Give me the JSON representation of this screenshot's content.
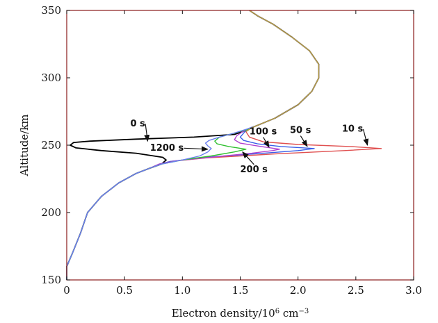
{
  "chart_data": {
    "type": "line",
    "xlabel": "Electron density/10",
    "xlabel_exp": "6",
    "xlabel_unit": " cm",
    "xlabel_unit_exp": "−3",
    "ylabel": "Altitude/km",
    "xlim": [
      0,
      3.0
    ],
    "ylim": [
      150,
      350
    ],
    "xticks": [
      0,
      0.5,
      1.0,
      1.5,
      2.0,
      2.5,
      3.0
    ],
    "xtick_labels": [
      "0",
      "0.5",
      "1.0",
      "1.5",
      "2.0",
      "2.5",
      "3.0"
    ],
    "yticks": [
      150,
      200,
      250,
      300,
      350
    ],
    "ytick_labels": [
      "150",
      "200",
      "250",
      "300",
      "350"
    ],
    "grid": false,
    "series": [
      {
        "label": "0 s",
        "color": "#000000",
        "points": [
          [
            0.0,
            150
          ],
          [
            0.0,
            160
          ],
          [
            0.05,
            170
          ],
          [
            0.12,
            185
          ],
          [
            0.18,
            200
          ],
          [
            0.3,
            212
          ],
          [
            0.45,
            222
          ],
          [
            0.6,
            229
          ],
          [
            0.72,
            233
          ],
          [
            0.82,
            236
          ],
          [
            0.86,
            239
          ],
          [
            0.83,
            241
          ],
          [
            0.6,
            244
          ],
          [
            0.3,
            246
          ],
          [
            0.08,
            248
          ],
          [
            0.03,
            250
          ],
          [
            0.06,
            252
          ],
          [
            0.2,
            253
          ],
          [
            0.6,
            254.5
          ],
          [
            1.1,
            256
          ],
          [
            1.45,
            258
          ],
          [
            1.52,
            260
          ],
          [
            1.6,
            263
          ],
          [
            1.8,
            270
          ],
          [
            2.0,
            280
          ],
          [
            2.12,
            290
          ],
          [
            2.18,
            300
          ],
          [
            2.18,
            310
          ],
          [
            2.1,
            320
          ],
          [
            1.95,
            330
          ],
          [
            1.78,
            340
          ],
          [
            1.65,
            346
          ],
          [
            1.58,
            350
          ]
        ]
      },
      {
        "label": "10 s",
        "color": "#e05050",
        "points": [
          [
            0.0,
            150
          ],
          [
            0.0,
            160
          ],
          [
            0.05,
            170
          ],
          [
            0.12,
            185
          ],
          [
            0.18,
            200
          ],
          [
            0.3,
            212
          ],
          [
            0.45,
            222
          ],
          [
            0.6,
            229
          ],
          [
            0.72,
            233
          ],
          [
            0.8,
            236
          ],
          [
            0.9,
            238
          ],
          [
            1.2,
            240.5
          ],
          [
            1.8,
            243.5
          ],
          [
            2.4,
            246
          ],
          [
            2.72,
            247.5
          ],
          [
            2.45,
            249
          ],
          [
            2.0,
            250.5
          ],
          [
            1.7,
            252.5
          ],
          [
            1.58,
            256
          ],
          [
            1.55,
            260
          ],
          [
            1.6,
            263
          ],
          [
            1.8,
            270
          ],
          [
            2.0,
            280
          ],
          [
            2.12,
            290
          ],
          [
            2.18,
            300
          ],
          [
            2.18,
            310
          ],
          [
            2.1,
            320
          ],
          [
            1.95,
            330
          ],
          [
            1.78,
            340
          ],
          [
            1.65,
            346
          ],
          [
            1.58,
            350
          ]
        ]
      },
      {
        "label": "50 s",
        "color": "#3a5ee8",
        "points": [
          [
            0.0,
            150
          ],
          [
            0.0,
            160
          ],
          [
            0.05,
            170
          ],
          [
            0.12,
            185
          ],
          [
            0.18,
            200
          ],
          [
            0.3,
            212
          ],
          [
            0.45,
            222
          ],
          [
            0.6,
            229
          ],
          [
            0.72,
            233
          ],
          [
            0.8,
            236
          ],
          [
            0.9,
            238
          ],
          [
            1.2,
            241
          ],
          [
            1.7,
            244
          ],
          [
            2.0,
            246
          ],
          [
            2.14,
            247.5
          ],
          [
            1.85,
            249
          ],
          [
            1.65,
            251
          ],
          [
            1.53,
            253.5
          ],
          [
            1.5,
            256
          ],
          [
            1.54,
            260
          ],
          [
            1.6,
            263
          ],
          [
            1.8,
            270
          ],
          [
            2.0,
            280
          ],
          [
            2.12,
            290
          ],
          [
            2.18,
            300
          ],
          [
            2.18,
            310
          ],
          [
            2.1,
            320
          ],
          [
            1.95,
            330
          ],
          [
            1.78,
            340
          ],
          [
            1.65,
            346
          ],
          [
            1.58,
            350
          ]
        ]
      },
      {
        "label": "100 s",
        "color": "#b040d0",
        "points": [
          [
            0.05,
            170
          ],
          [
            0.12,
            185
          ],
          [
            0.18,
            200
          ],
          [
            0.3,
            212
          ],
          [
            0.45,
            222
          ],
          [
            0.6,
            229
          ],
          [
            0.72,
            233
          ],
          [
            0.8,
            236
          ],
          [
            0.95,
            238.5
          ],
          [
            1.3,
            241.5
          ],
          [
            1.6,
            244
          ],
          [
            1.78,
            246
          ],
          [
            1.84,
            247
          ],
          [
            1.68,
            249
          ],
          [
            1.5,
            251.5
          ],
          [
            1.45,
            254
          ],
          [
            1.47,
            257
          ],
          [
            1.52,
            260
          ],
          [
            1.6,
            263
          ]
        ]
      },
      {
        "label": "200 s",
        "color": "#30c030",
        "points": [
          [
            0.0,
            150
          ],
          [
            0.0,
            160
          ],
          [
            0.05,
            170
          ],
          [
            0.12,
            185
          ],
          [
            0.18,
            200
          ],
          [
            0.3,
            212
          ],
          [
            0.45,
            222
          ],
          [
            0.6,
            229
          ],
          [
            0.72,
            233
          ],
          [
            0.82,
            236
          ],
          [
            1.0,
            239
          ],
          [
            1.25,
            242
          ],
          [
            1.45,
            245
          ],
          [
            1.55,
            247
          ],
          [
            1.4,
            249
          ],
          [
            1.3,
            251
          ],
          [
            1.28,
            253
          ],
          [
            1.32,
            256
          ],
          [
            1.45,
            259
          ],
          [
            1.58,
            262
          ],
          [
            1.62,
            264
          ]
        ]
      },
      {
        "label": "1200 s",
        "color": "#6a7ef0",
        "points": [
          [
            0.0,
            150
          ],
          [
            0.0,
            160
          ],
          [
            0.05,
            170
          ],
          [
            0.12,
            185
          ],
          [
            0.18,
            200
          ],
          [
            0.3,
            212
          ],
          [
            0.45,
            222
          ],
          [
            0.6,
            229
          ],
          [
            0.72,
            233
          ],
          [
            0.82,
            236
          ],
          [
            1.0,
            239
          ],
          [
            1.15,
            242
          ],
          [
            1.22,
            245
          ],
          [
            1.25,
            247.5
          ],
          [
            1.22,
            249.5
          ],
          [
            1.2,
            251.5
          ],
          [
            1.23,
            253.5
          ],
          [
            1.32,
            256
          ],
          [
            1.45,
            259
          ],
          [
            1.56,
            262
          ],
          [
            1.62,
            264
          ]
        ]
      },
      {
        "label": "",
        "color": "#b8a040",
        "points": [
          [
            1.55,
            260
          ],
          [
            1.6,
            263
          ],
          [
            1.8,
            270
          ],
          [
            2.0,
            280
          ],
          [
            2.12,
            290
          ],
          [
            2.18,
            300
          ],
          [
            2.18,
            310
          ],
          [
            2.1,
            320
          ],
          [
            1.95,
            330
          ],
          [
            1.78,
            340
          ],
          [
            1.65,
            346
          ],
          [
            1.58,
            350
          ]
        ]
      }
    ],
    "annotations": [
      {
        "text": "0 s",
        "text_at": [
          0.55,
          264
        ],
        "arrow_to": [
          0.7,
          253
        ]
      },
      {
        "text": "10 s",
        "text_at": [
          2.38,
          260
        ],
        "arrow_to": [
          2.6,
          250
        ]
      },
      {
        "text": "50 s",
        "text_at": [
          1.93,
          259
        ],
        "arrow_to": [
          2.08,
          249
        ]
      },
      {
        "text": "100 s",
        "text_at": [
          1.58,
          258
        ],
        "arrow_to": [
          1.75,
          248.5
        ]
      },
      {
        "text": "1200 s",
        "text_at": [
          0.72,
          246
        ],
        "arrow_to": [
          1.22,
          247
        ]
      },
      {
        "text": "200 s",
        "text_at": [
          1.5,
          230
        ],
        "arrow_to": [
          1.52,
          245
        ]
      }
    ]
  }
}
